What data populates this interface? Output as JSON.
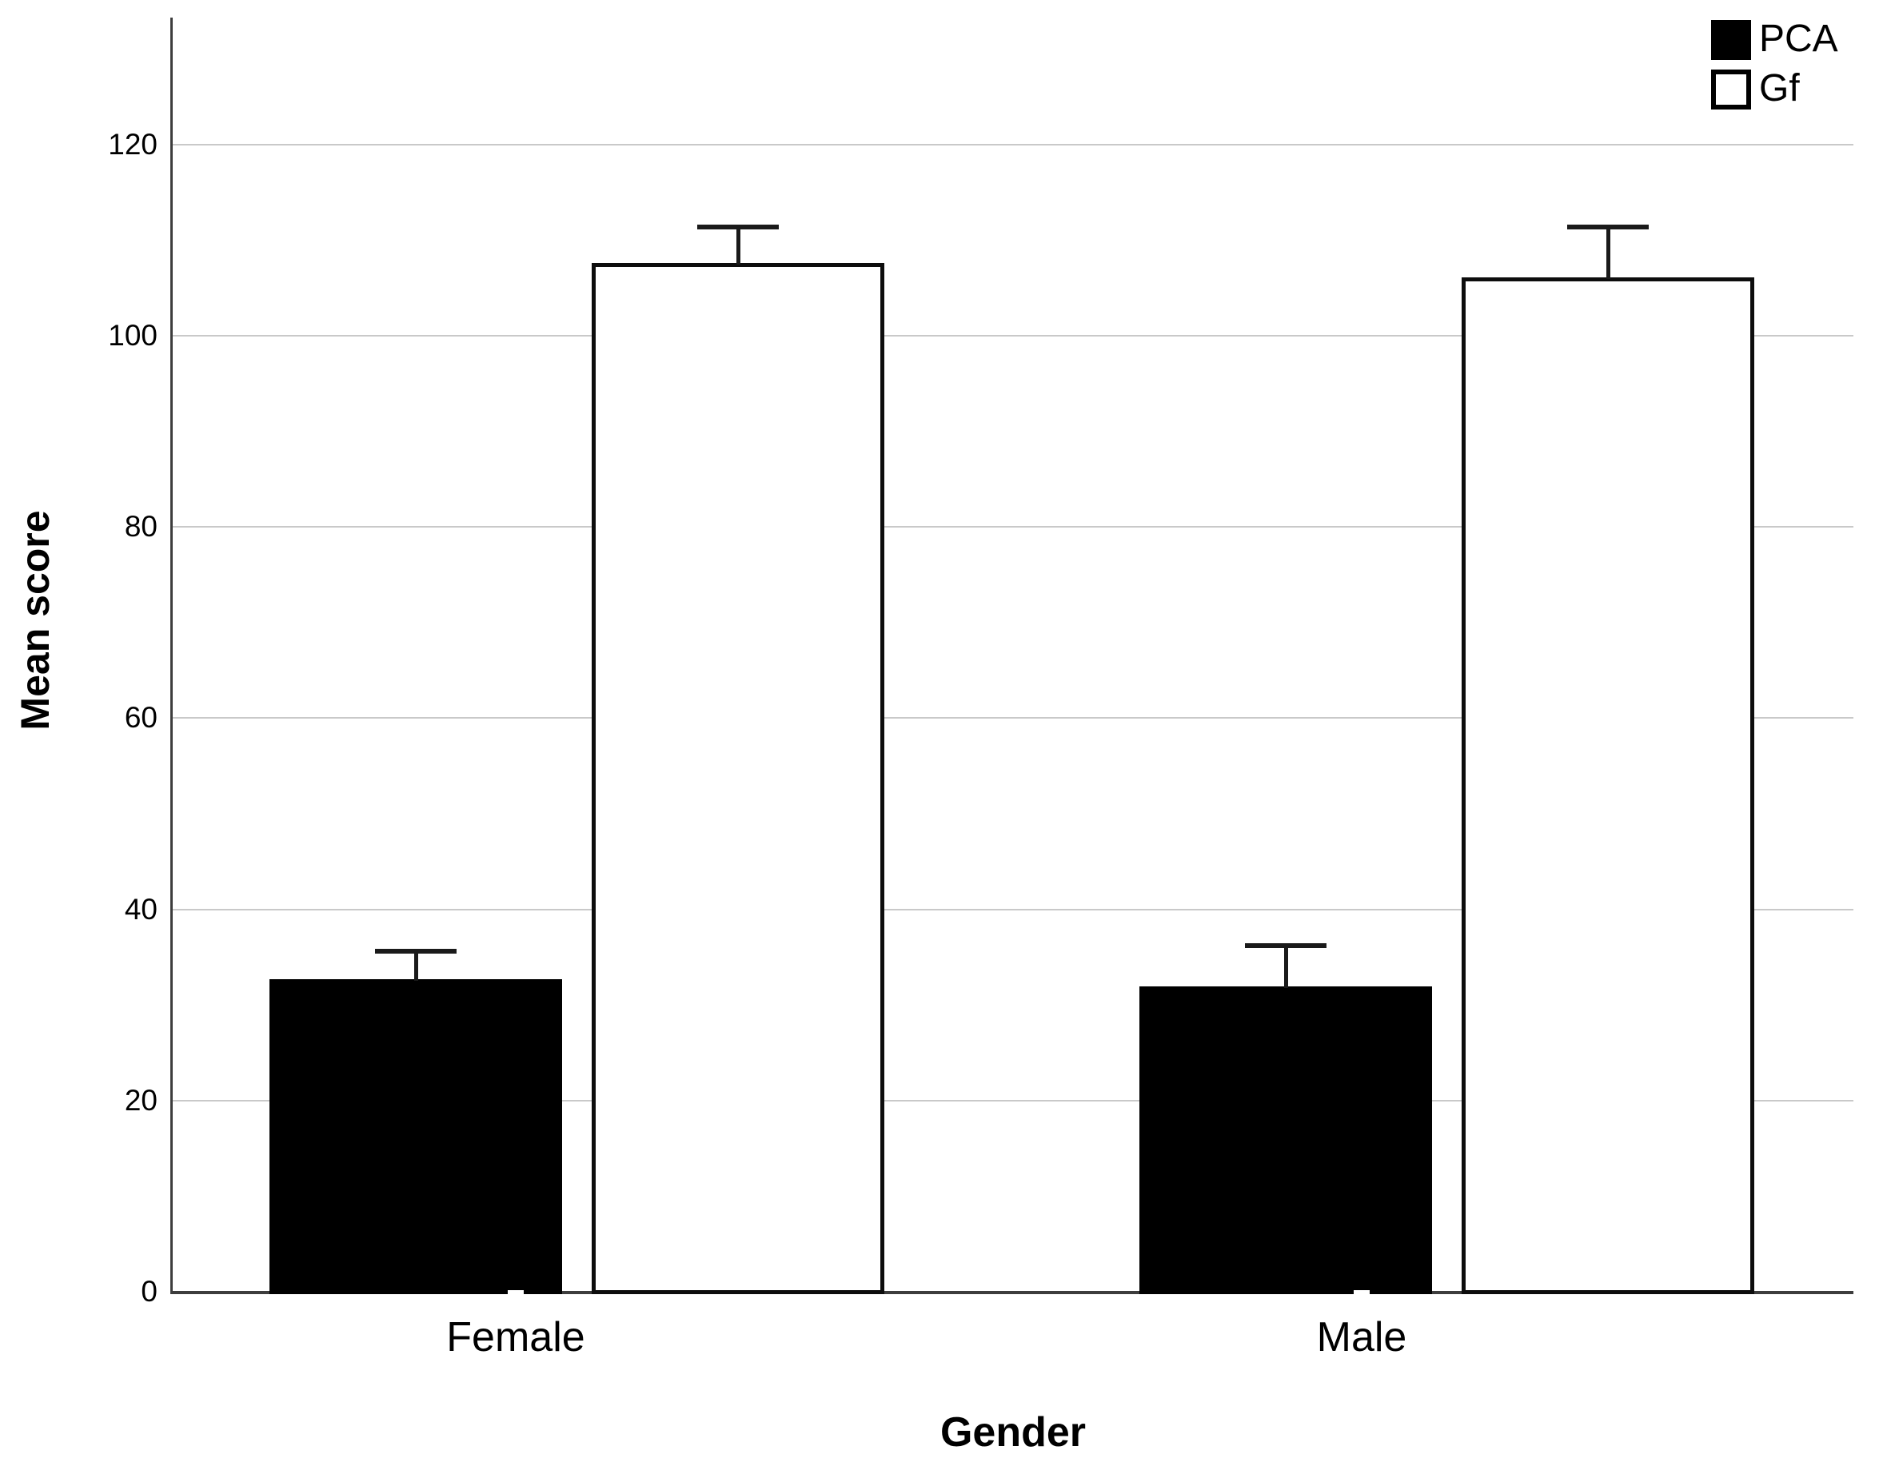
{
  "figure": {
    "y_axis_title": "Mean score",
    "x_axis_title": "Gender",
    "legend": [
      {
        "label": "PCA",
        "fill": "#000000"
      },
      {
        "label": "Gf",
        "fill": "#ffffff"
      }
    ]
  },
  "chart_data": {
    "type": "bar",
    "categories": [
      "Female",
      "Male"
    ],
    "series": [
      {
        "name": "PCA",
        "fill": "#000000",
        "values": [
          32.7,
          31.9
        ],
        "errors_upper": [
          2.9,
          4.3
        ]
      },
      {
        "name": "Gf",
        "fill": "#ffffff",
        "values": [
          107.6,
          106.1
        ],
        "errors_upper": [
          3.8,
          5.3
        ]
      }
    ],
    "title": "",
    "xlabel": "Gender",
    "ylabel": "Mean score",
    "ylim": [
      0,
      133
    ],
    "yticks": [
      0,
      20,
      40,
      60,
      80,
      100,
      120
    ],
    "grid": "horizontal",
    "gridline_color": "#c9c9c9",
    "axis_color": "#3d3d3d",
    "bar_border_color": "#0d0d0d",
    "error_bar_color": "#1a1a1a",
    "error_bars": "upper-only",
    "legend_position": "top-right"
  }
}
